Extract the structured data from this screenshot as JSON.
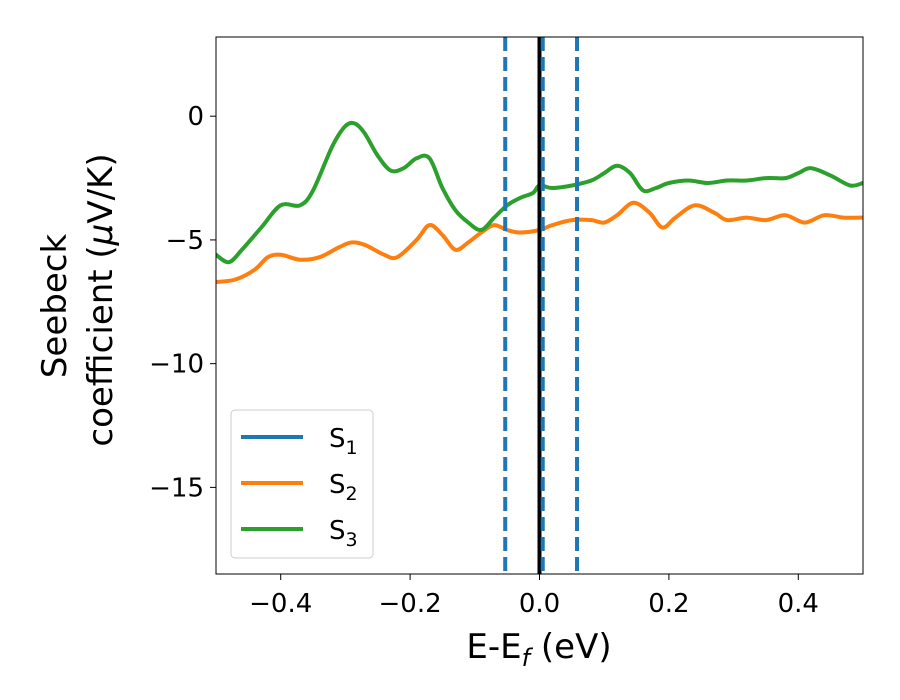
{
  "chart_data": {
    "type": "line",
    "xlabel": {
      "main": "E-E",
      "sub": "f",
      "tail": " (eV)"
    },
    "ylabel": {
      "line1": "Seebeck",
      "line2_prefix": "coefficient  (",
      "mu": "μ",
      "line2_suffix": "V/K)"
    },
    "xlim": [
      -0.5,
      0.5
    ],
    "ylim": [
      -18.5,
      3.2
    ],
    "xticks": [
      -0.4,
      -0.2,
      0.0,
      0.2,
      0.4
    ],
    "xtick_labels": [
      "−0.4",
      "−0.2",
      "0.0",
      "0.2",
      "0.4"
    ],
    "yticks": [
      0,
      -5,
      -10,
      -15
    ],
    "ytick_labels": [
      "0",
      "−5",
      "−10",
      "−15"
    ],
    "legend_position": "lower-left",
    "series": [
      {
        "name": "S",
        "sub": "1",
        "color": "#1f77b4",
        "x": [
          -0.5,
          0.5
        ],
        "y": [
          null,
          null
        ]
      },
      {
        "name": "S",
        "sub": "2",
        "color": "#ff7f0e",
        "x": [
          -0.5,
          -0.47,
          -0.44,
          -0.42,
          -0.4,
          -0.37,
          -0.34,
          -0.31,
          -0.29,
          -0.27,
          -0.24,
          -0.22,
          -0.19,
          -0.17,
          -0.15,
          -0.13,
          -0.11,
          -0.09,
          -0.07,
          -0.05,
          -0.03,
          0.0,
          0.02,
          0.05,
          0.08,
          0.1,
          0.12,
          0.145,
          0.17,
          0.19,
          0.21,
          0.24,
          0.27,
          0.29,
          0.32,
          0.35,
          0.38,
          0.41,
          0.44,
          0.47,
          0.5
        ],
        "y": [
          -6.7,
          -6.6,
          -6.2,
          -5.7,
          -5.6,
          -5.8,
          -5.7,
          -5.3,
          -5.1,
          -5.2,
          -5.6,
          -5.7,
          -5.0,
          -4.4,
          -4.8,
          -5.4,
          -5.1,
          -4.7,
          -4.4,
          -4.6,
          -4.7,
          -4.6,
          -4.4,
          -4.2,
          -4.2,
          -4.3,
          -4.0,
          -3.5,
          -3.9,
          -4.5,
          -4.1,
          -3.6,
          -3.9,
          -4.2,
          -4.1,
          -4.2,
          -4.0,
          -4.3,
          -4.0,
          -4.1,
          -4.1
        ]
      },
      {
        "name": "S",
        "sub": "3",
        "color": "#2ca02c",
        "x": [
          -0.5,
          -0.48,
          -0.46,
          -0.43,
          -0.4,
          -0.37,
          -0.35,
          -0.32,
          -0.3,
          -0.285,
          -0.27,
          -0.25,
          -0.23,
          -0.21,
          -0.19,
          -0.17,
          -0.15,
          -0.13,
          -0.11,
          -0.09,
          -0.07,
          -0.05,
          -0.03,
          -0.01,
          0.0,
          0.02,
          0.05,
          0.08,
          0.1,
          0.12,
          0.14,
          0.16,
          0.18,
          0.2,
          0.23,
          0.26,
          0.29,
          0.32,
          0.35,
          0.38,
          0.4,
          0.42,
          0.45,
          0.48,
          0.5
        ],
        "y": [
          -5.6,
          -5.9,
          -5.4,
          -4.5,
          -3.6,
          -3.6,
          -3.0,
          -1.2,
          -0.4,
          -0.3,
          -0.7,
          -1.6,
          -2.2,
          -2.1,
          -1.7,
          -1.7,
          -2.9,
          -3.8,
          -4.3,
          -4.6,
          -4.1,
          -3.6,
          -3.3,
          -3.1,
          -2.8,
          -2.9,
          -2.8,
          -2.6,
          -2.3,
          -2.0,
          -2.3,
          -3.0,
          -2.9,
          -2.7,
          -2.6,
          -2.7,
          -2.6,
          -2.6,
          -2.5,
          -2.5,
          -2.3,
          -2.1,
          -2.4,
          -2.8,
          -2.7
        ]
      }
    ],
    "vlines": [
      {
        "x": -0.053,
        "style": "dashed",
        "color": "#1f77b4"
      },
      {
        "x": 0.0,
        "style": "solid",
        "color": "#000000"
      },
      {
        "x": 0.005,
        "style": "dashed",
        "color": "#1f77b4"
      },
      {
        "x": 0.058,
        "style": "dashed",
        "color": "#1f77b4"
      }
    ]
  }
}
